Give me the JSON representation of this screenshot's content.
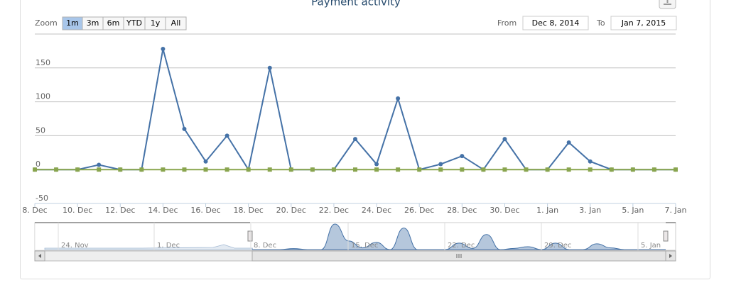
{
  "chart_data": {
    "type": "line",
    "title": "Payment activity",
    "zoom_label": "Zoom",
    "zoom_buttons": [
      "1m",
      "3m",
      "6m",
      "YTD",
      "1y",
      "All"
    ],
    "zoom_selected": 0,
    "from_label": "From",
    "from_value": "Dec 8, 2014",
    "to_label": "To",
    "to_value": "Jan 7, 2015",
    "categories": [
      "8. Dec",
      null,
      "10. Dec",
      null,
      "12. Dec",
      null,
      "14. Dec",
      null,
      "16. Dec",
      null,
      "18. Dec",
      null,
      "20. Dec",
      null,
      "22. Dec",
      null,
      "24. Dec",
      null,
      "26. Dec",
      null,
      "28. Dec",
      null,
      "30. Dec",
      null,
      "1. Jan",
      null,
      "3. Jan",
      null,
      "5. Jan",
      null,
      "7. Jan"
    ],
    "series": [
      {
        "color": "#4572a7",
        "values": [
          0,
          0,
          0,
          7,
          0,
          0,
          178,
          60,
          12,
          50,
          0,
          150,
          0,
          0,
          0,
          45,
          8,
          105,
          0,
          8,
          20,
          0,
          45,
          0,
          0,
          40,
          12,
          0,
          0,
          0,
          0
        ]
      },
      {
        "color": "#89a54e",
        "values": [
          0,
          0,
          0,
          0,
          0,
          0,
          0,
          0,
          0,
          0,
          0,
          0,
          0,
          0,
          0,
          0,
          0,
          0,
          0,
          0,
          0,
          0,
          0,
          0,
          0,
          0,
          0,
          0,
          0,
          0,
          0
        ]
      }
    ],
    "ylim": [
      -50,
      200
    ],
    "yticks": [
      -50,
      0,
      50,
      100,
      150
    ],
    "grid": true,
    "navigator_labels": [
      "24. Nov",
      "1. Dec",
      "8. Dec",
      "15. Dec",
      "22. Dec",
      "29. Dec",
      "5. Jan"
    ]
  }
}
